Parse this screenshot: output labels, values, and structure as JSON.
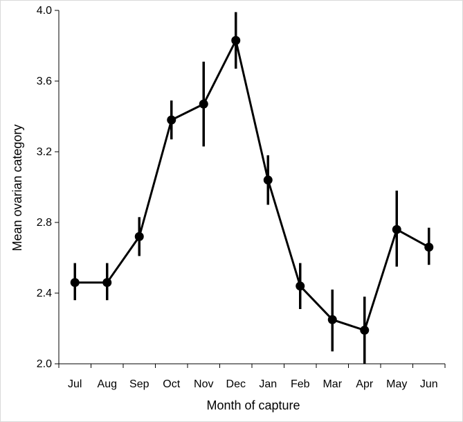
{
  "chart_data": {
    "type": "line",
    "title": "",
    "xlabel": "Month of capture",
    "ylabel": "Mean ovarian category",
    "categories": [
      "Jul",
      "Aug",
      "Sep",
      "Oct",
      "Nov",
      "Dec",
      "Jan",
      "Feb",
      "Mar",
      "Apr",
      "May",
      "Jun"
    ],
    "ylim": [
      2.0,
      4.0
    ],
    "yticks": [
      "2.0",
      "2.4",
      "2.8",
      "3.2",
      "3.6",
      "4.0"
    ],
    "grid": false,
    "legend": "none",
    "series": [
      {
        "values": [
          2.46,
          2.46,
          2.72,
          3.38,
          3.47,
          3.83,
          3.04,
          2.44,
          2.25,
          2.19,
          2.76,
          2.66
        ],
        "error_low": [
          2.36,
          2.36,
          2.61,
          3.27,
          3.23,
          3.67,
          2.9,
          2.31,
          2.07,
          2.0,
          2.55,
          2.56
        ],
        "error_high": [
          2.57,
          2.57,
          2.83,
          3.49,
          3.71,
          3.99,
          3.18,
          2.57,
          2.42,
          2.38,
          2.98,
          2.77
        ],
        "color": "#000000"
      }
    ]
  }
}
